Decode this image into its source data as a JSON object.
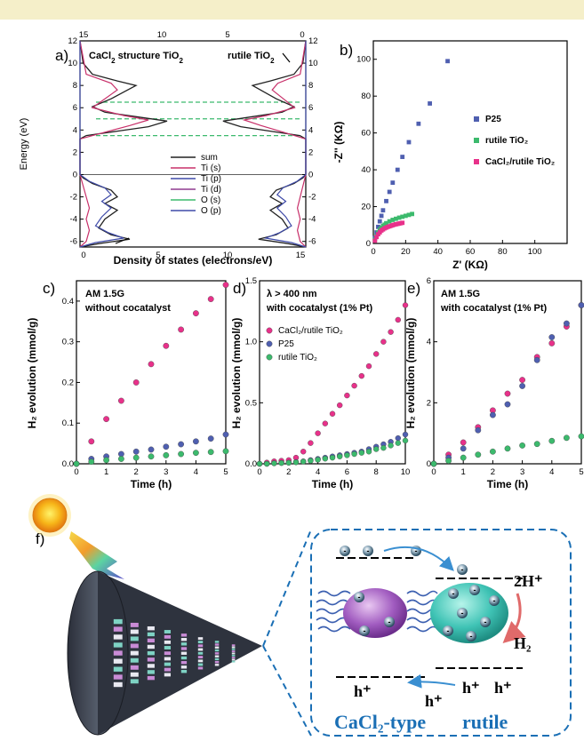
{
  "panels": {
    "a": {
      "label": "a)",
      "title_left": "CaCl",
      "title_left_sub": "2",
      "title_left_rest": " structure TiO",
      "title_left_sub2": "2",
      "title_right": "rutile TiO",
      "title_right_sub": "2",
      "xlabel": "Density of states (electrons/eV)",
      "ylabel": "Energy (eV)",
      "legend": [
        "sum",
        "Ti (s)",
        "Ti (p)",
        "Ti (d)",
        "O (s)",
        "O (p)"
      ]
    },
    "b": {
      "label": "b)",
      "xlabel": "Z' (KΩ)",
      "ylabel": "-Z'' (KΩ)",
      "legend": [
        "P25",
        "rutile TiO₂",
        "CaCl₂/rutile TiO₂"
      ]
    },
    "c": {
      "label": "c)",
      "annotation1": "AM 1.5G",
      "annotation2": "without cocatalyst",
      "xlabel": "Time (h)",
      "ylabel": "H₂ evolution (mmol/g)"
    },
    "d": {
      "label": "d)",
      "annotation1": "λ  > 400 nm",
      "annotation2": "with cocatalyst (1% Pt)",
      "xlabel": "Time (h)",
      "ylabel": "H₂ evolution (mmol/g)",
      "legend": [
        "CaCl₂/rutile TiO₂",
        "P25",
        "rutile TiO₂"
      ]
    },
    "e": {
      "label": "e)",
      "annotation1": "AM 1.5G",
      "annotation2": "with cocatalyst (1% Pt)",
      "xlabel": "Time (h)",
      "ylabel": "H₂ evolution (mmol/g)"
    },
    "f": {
      "label": "f)",
      "label_caCl2": "CaCl₂-type",
      "label_rutile": "rutile",
      "h2_product": "H₂",
      "reactant": "2H⁺",
      "hole": "h⁺"
    }
  },
  "colors": {
    "p25": "#4f5fb0",
    "rutile": "#3cba6d",
    "cacl2": "#e8318a",
    "frame": "#1a6fb5"
  },
  "chart_data": [
    {
      "panel": "a",
      "type": "line",
      "ylim": [
        -6.5,
        12
      ],
      "x_top_left": [
        15,
        10,
        5,
        0
      ],
      "x_top_right": [
        0,
        5,
        10,
        15
      ],
      "x_bottom_left": [
        0,
        5,
        10,
        15
      ],
      "y_ticks": [
        -6,
        -4,
        -2,
        0,
        2,
        4,
        6,
        8,
        10,
        12
      ]
    },
    {
      "panel": "b",
      "type": "scatter",
      "xlim": [
        0,
        120
      ],
      "ylim": [
        0,
        110
      ],
      "xticks": [
        0,
        20,
        40,
        60,
        80,
        100
      ],
      "yticks": [
        0,
        20,
        40,
        60,
        80,
        100
      ],
      "series": [
        {
          "name": "P25",
          "x": [
            1,
            2,
            3,
            4,
            5,
            6,
            8,
            10,
            12,
            15,
            18,
            22,
            28,
            35,
            46
          ],
          "y": [
            3,
            6,
            9,
            12,
            15,
            18,
            23,
            28,
            33,
            40,
            47,
            55,
            65,
            76,
            99
          ]
        },
        {
          "name": "rutile TiO₂",
          "x": [
            1,
            2,
            3,
            4,
            5,
            6,
            7,
            8,
            10,
            12,
            14,
            16,
            18,
            20,
            22,
            24
          ],
          "y": [
            2,
            4,
            6,
            7.5,
            8.5,
            9.5,
            10.2,
            11,
            12,
            12.8,
            13.4,
            14,
            14.5,
            15,
            15.5,
            16
          ]
        },
        {
          "name": "CaCl₂/rutile TiO₂",
          "x": [
            1,
            2,
            3,
            4,
            5,
            6,
            7,
            8,
            9,
            10,
            11,
            12,
            13,
            14,
            15,
            16,
            17,
            18
          ],
          "y": [
            1.5,
            3.5,
            5,
            6,
            7,
            7.6,
            8.2,
            8.6,
            9,
            9.3,
            9.6,
            9.9,
            10.2,
            10.4,
            10.6,
            10.8,
            11,
            11.2
          ]
        }
      ]
    },
    {
      "panel": "c",
      "type": "scatter",
      "xlim": [
        0,
        5
      ],
      "ylim": [
        0,
        0.45
      ],
      "xticks": [
        0,
        1,
        2,
        3,
        4,
        5
      ],
      "yticks": [
        0.0,
        0.1,
        0.2,
        0.3,
        0.4
      ],
      "x": [
        0,
        0.5,
        1,
        1.5,
        2,
        2.5,
        3,
        3.5,
        4,
        4.5,
        5
      ],
      "series": [
        {
          "name": "CaCl₂/rutile TiO₂",
          "values": [
            0,
            0.055,
            0.11,
            0.155,
            0.2,
            0.245,
            0.29,
            0.33,
            0.37,
            0.405,
            0.44
          ]
        },
        {
          "name": "P25",
          "values": [
            0,
            0.012,
            0.018,
            0.024,
            0.03,
            0.035,
            0.042,
            0.048,
            0.055,
            0.062,
            0.072
          ]
        },
        {
          "name": "rutile TiO₂",
          "values": [
            0,
            0.005,
            0.009,
            0.012,
            0.015,
            0.018,
            0.021,
            0.024,
            0.027,
            0.029,
            0.031
          ]
        }
      ]
    },
    {
      "panel": "d",
      "type": "scatter",
      "xlim": [
        0,
        10
      ],
      "ylim": [
        0,
        1.5
      ],
      "xticks": [
        0,
        2,
        4,
        6,
        8,
        10
      ],
      "yticks": [
        0.0,
        0.5,
        1.0,
        1.5
      ],
      "x": [
        0,
        0.5,
        1,
        1.5,
        2,
        2.5,
        3,
        3.5,
        4,
        4.5,
        5,
        5.5,
        6,
        6.5,
        7,
        7.5,
        8,
        8.5,
        9,
        9.5,
        10
      ],
      "series": [
        {
          "name": "CaCl₂/rutile TiO₂",
          "values": [
            0,
            0.01,
            0.02,
            0.025,
            0.03,
            0.05,
            0.1,
            0.17,
            0.25,
            0.33,
            0.41,
            0.48,
            0.56,
            0.64,
            0.72,
            0.8,
            0.9,
            1.0,
            1.08,
            1.18,
            1.3
          ]
        },
        {
          "name": "P25",
          "values": [
            0,
            0.0,
            0.005,
            0.008,
            0.01,
            0.015,
            0.02,
            0.03,
            0.04,
            0.05,
            0.06,
            0.07,
            0.08,
            0.09,
            0.1,
            0.12,
            0.14,
            0.16,
            0.18,
            0.21,
            0.24
          ]
        },
        {
          "name": "rutile TiO₂",
          "values": [
            0,
            0.0,
            0.004,
            0.006,
            0.008,
            0.012,
            0.018,
            0.025,
            0.033,
            0.042,
            0.05,
            0.06,
            0.07,
            0.08,
            0.09,
            0.1,
            0.12,
            0.13,
            0.15,
            0.17,
            0.19
          ]
        }
      ]
    },
    {
      "panel": "e",
      "type": "scatter",
      "xlim": [
        0,
        5
      ],
      "ylim": [
        0,
        6
      ],
      "xticks": [
        0,
        1,
        2,
        3,
        4,
        5
      ],
      "yticks": [
        0,
        2,
        4,
        6
      ],
      "x": [
        0,
        0.5,
        1,
        1.5,
        2,
        2.5,
        3,
        3.5,
        4,
        4.5,
        5
      ],
      "series": [
        {
          "name": "CaCl₂/rutile TiO₂",
          "values": [
            0,
            0.3,
            0.7,
            1.2,
            1.75,
            2.3,
            2.75,
            3.5,
            3.95,
            4.5,
            5.2
          ]
        },
        {
          "name": "P25",
          "values": [
            0,
            0.2,
            0.5,
            1.1,
            1.6,
            1.95,
            2.55,
            3.4,
            4.15,
            4.6,
            5.2
          ]
        },
        {
          "name": "rutile TiO₂",
          "values": [
            0,
            0.1,
            0.2,
            0.3,
            0.4,
            0.5,
            0.6,
            0.65,
            0.75,
            0.85,
            0.9
          ]
        }
      ]
    }
  ]
}
